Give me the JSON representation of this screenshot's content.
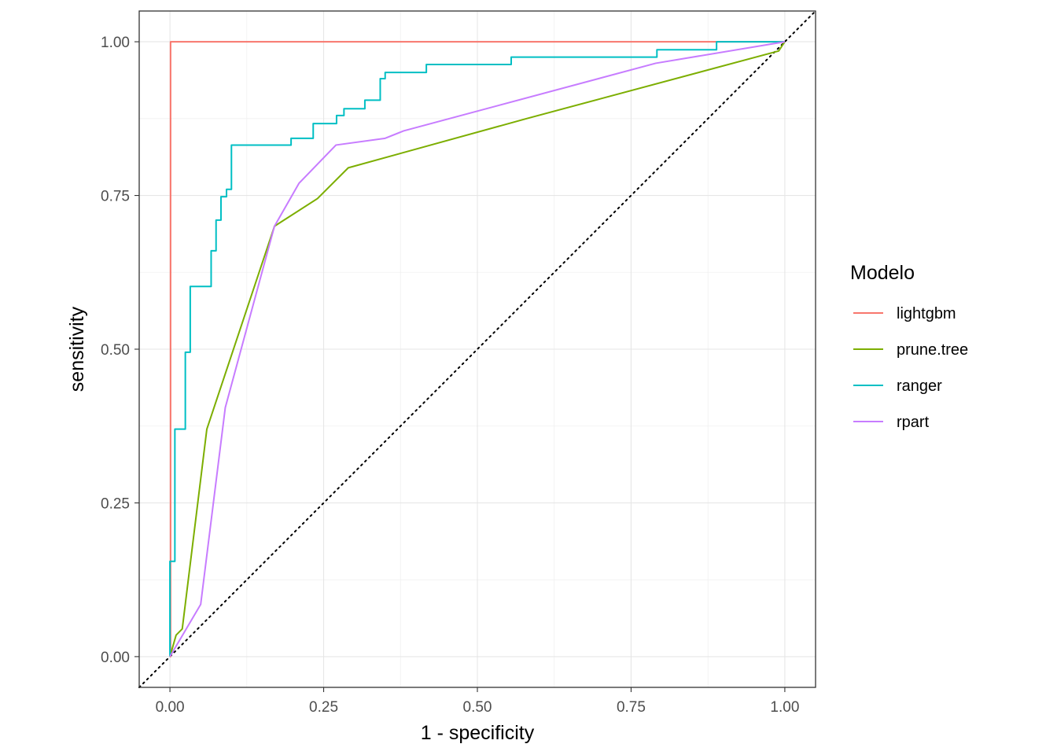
{
  "chart_data": {
    "type": "line",
    "title": "",
    "xlabel": "1 - specificity",
    "ylabel": "sensitivity",
    "xlim": [
      -0.05,
      1.05
    ],
    "ylim": [
      -0.05,
      1.05
    ],
    "x_ticks": [
      0,
      0.25,
      0.5,
      0.75,
      1
    ],
    "x_tick_labels": [
      "0.00",
      "0.25",
      "0.50",
      "0.75",
      "1.00"
    ],
    "y_ticks": [
      0,
      0.25,
      0.5,
      0.75,
      1
    ],
    "y_tick_labels": [
      "0.00",
      "0.25",
      "0.50",
      "0.75",
      "1.00"
    ],
    "grid": true,
    "reference_line": {
      "style": "dotted",
      "color": "#000000",
      "from": [
        0,
        0
      ],
      "to": [
        1,
        1
      ]
    },
    "legend": {
      "title": "Modelo",
      "position": "right"
    },
    "series": [
      {
        "name": "lightgbm",
        "color": "#F8766D",
        "step": false,
        "x": [
          0,
          0.001,
          0.001,
          0.889,
          0.889,
          1.0
        ],
        "y": [
          0,
          0,
          1.0,
          1.0,
          1.0,
          1.0
        ]
      },
      {
        "name": "prune.tree",
        "color": "#7CAE00",
        "step": false,
        "x": [
          0,
          0.01,
          0.02,
          0.06,
          0.17,
          0.24,
          0.29,
          0.58,
          0.99,
          1.0
        ],
        "y": [
          0,
          0.035,
          0.045,
          0.37,
          0.7,
          0.745,
          0.795,
          0.875,
          0.985,
          1.0
        ]
      },
      {
        "name": "ranger",
        "color": "#00BFC4",
        "step": true,
        "x": [
          0,
          0,
          0.008,
          0.008,
          0.025,
          0.025,
          0.033,
          0.033,
          0.067,
          0.067,
          0.075,
          0.075,
          0.083,
          0.083,
          0.092,
          0.092,
          0.1,
          0.1,
          0.197,
          0.197,
          0.233,
          0.233,
          0.271,
          0.271,
          0.283,
          0.283,
          0.317,
          0.317,
          0.342,
          0.342,
          0.35,
          0.35,
          0.417,
          0.417,
          0.555,
          0.555,
          0.792,
          0.792,
          0.889,
          0.889,
          1.0
        ],
        "y": [
          0,
          0.155,
          0.155,
          0.37,
          0.37,
          0.495,
          0.495,
          0.602,
          0.602,
          0.66,
          0.66,
          0.71,
          0.71,
          0.748,
          0.748,
          0.76,
          0.76,
          0.832,
          0.832,
          0.843,
          0.843,
          0.867,
          0.867,
          0.88,
          0.88,
          0.891,
          0.891,
          0.905,
          0.905,
          0.94,
          0.94,
          0.95,
          0.95,
          0.963,
          0.963,
          0.975,
          0.975,
          0.987,
          0.987,
          1.0,
          1.0
        ]
      },
      {
        "name": "rpart",
        "color": "#C77CFF",
        "step": false,
        "x": [
          0,
          0.05,
          0.09,
          0.17,
          0.21,
          0.27,
          0.35,
          0.38,
          0.79,
          1.0
        ],
        "y": [
          0,
          0.085,
          0.405,
          0.7,
          0.77,
          0.832,
          0.843,
          0.855,
          0.965,
          1.0
        ]
      }
    ]
  }
}
